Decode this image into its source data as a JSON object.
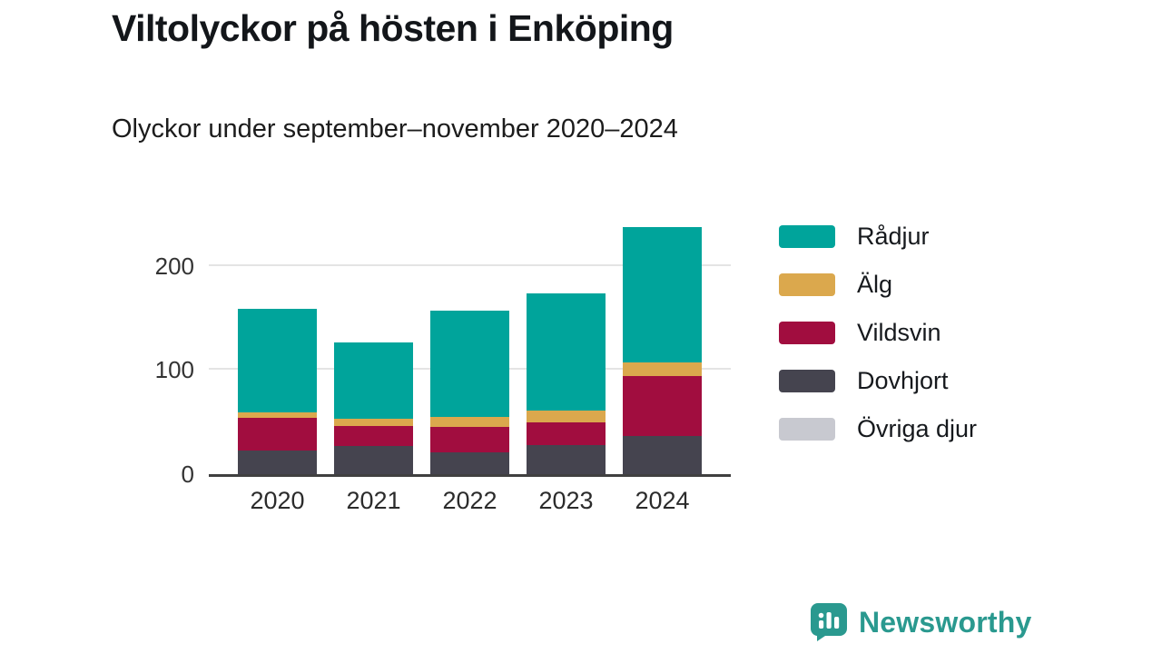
{
  "title": "Viltolyckor på hösten i Enköping",
  "subtitle": "Olyckor under september–november 2020–2024",
  "chart_data": {
    "type": "bar",
    "stacked": true,
    "title": "Viltolyckor på hösten i Enköping",
    "subtitle": "Olyckor under september–november 2020–2024",
    "categories": [
      "2020",
      "2021",
      "2022",
      "2023",
      "2024"
    ],
    "series": [
      {
        "name": "Rådjur",
        "color": "#00a49b",
        "values": [
          100,
          74,
          102,
          113,
          130
        ]
      },
      {
        "name": "Älg",
        "color": "#dba84d",
        "values": [
          5,
          7,
          10,
          11,
          13
        ]
      },
      {
        "name": "Vildsvin",
        "color": "#a10d3f",
        "values": [
          31,
          19,
          24,
          22,
          57
        ]
      },
      {
        "name": "Dovhjort",
        "color": "#45444f",
        "values": [
          23,
          27,
          21,
          28,
          37
        ]
      },
      {
        "name": "Övriga djur",
        "color": "#c8c9d0",
        "values": [
          0,
          0,
          0,
          0,
          0
        ]
      }
    ],
    "xlabel": "",
    "ylabel": "",
    "ylim": [
      0,
      240
    ],
    "yticks": [
      0,
      100,
      200
    ],
    "grid": true,
    "legend_position": "right"
  },
  "footer": {
    "brand": "Newsworthy",
    "brand_color": "#2a998f",
    "icon_color": "#2a998f"
  }
}
